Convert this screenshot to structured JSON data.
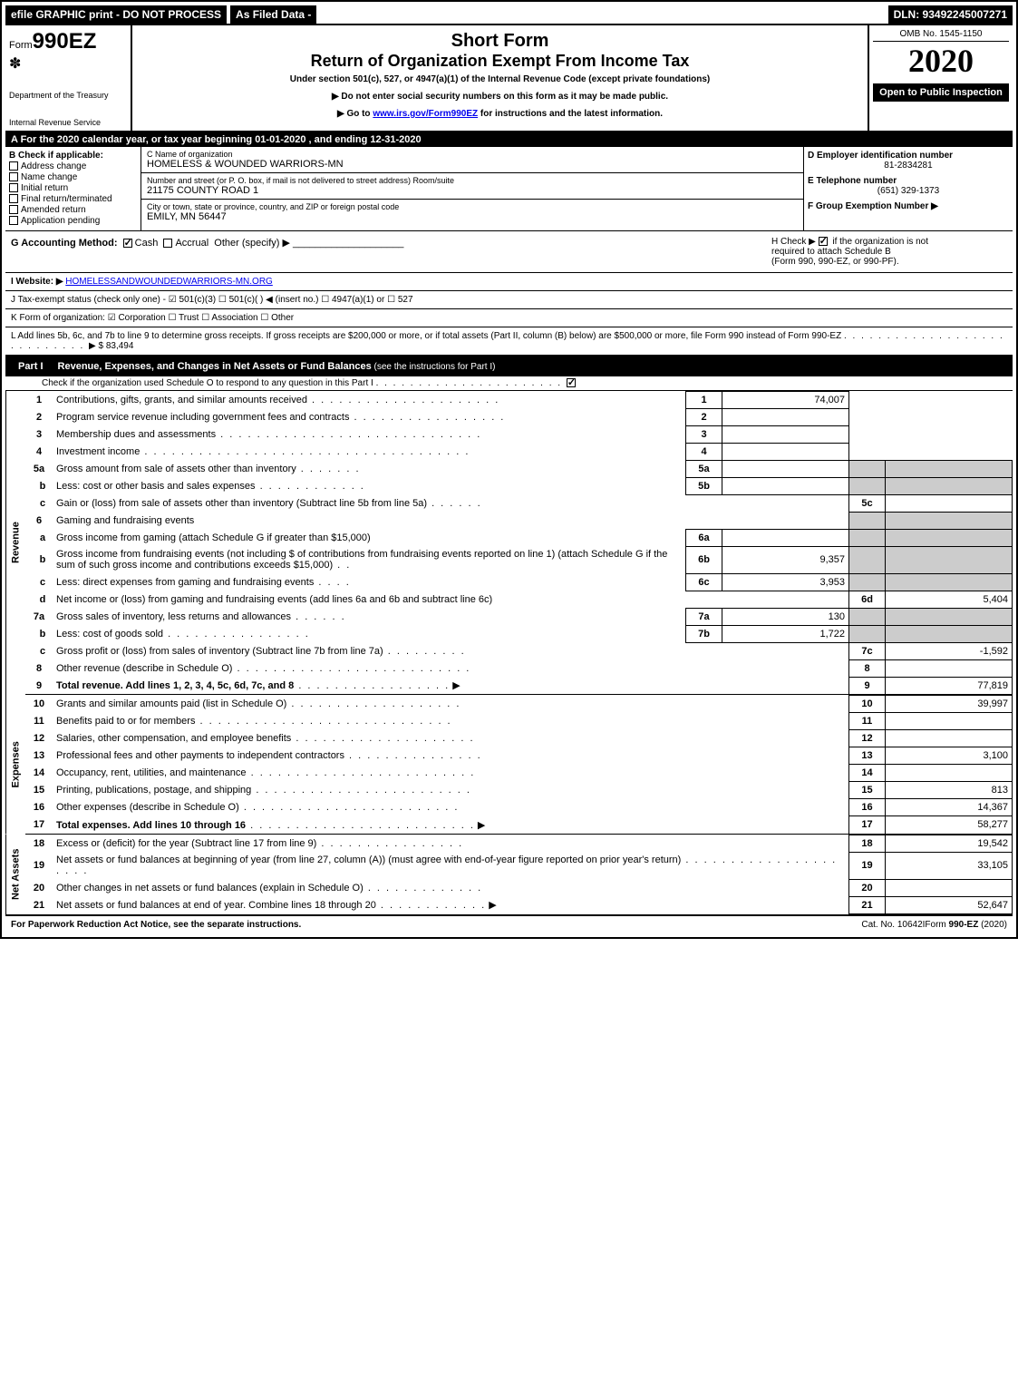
{
  "top": {
    "efile": "efile GRAPHIC print - DO NOT PROCESS",
    "filed": "As Filed Data -",
    "dln": "DLN: 93492245007271"
  },
  "header": {
    "form_prefix": "Form",
    "form_num": "990EZ",
    "dept1": "Department of the Treasury",
    "dept2": "Internal Revenue Service",
    "short": "Short Form",
    "return": "Return of Organization Exempt From Income Tax",
    "under": "Under section 501(c), 527, or 4947(a)(1) of the Internal Revenue Code (except private foundations)",
    "arrow1": "▶ Do not enter social security numbers on this form as it may be made public.",
    "arrow2_pre": "▶ Go to ",
    "arrow2_link": "www.irs.gov/Form990EZ",
    "arrow2_post": " for instructions and the latest information.",
    "omb": "OMB No. 1545-1150",
    "year": "2020",
    "open": "Open to Public Inspection"
  },
  "row_a": "A  For the 2020 calendar year, or tax year beginning 01-01-2020 , and ending 12-31-2020",
  "col_b": {
    "title": "B  Check if applicable:",
    "items": [
      "Address change",
      "Name change",
      "Initial return",
      "Final return/terminated",
      "Amended return",
      "Application pending"
    ]
  },
  "col_c": {
    "name_lbl": "C Name of organization",
    "name_val": "HOMELESS & WOUNDED WARRIORS-MN",
    "addr_lbl": "Number and street (or P. O. box, if mail is not delivered to street address)    Room/suite",
    "addr_val": "21175 COUNTY ROAD 1",
    "city_lbl": "City or town, state or province, country, and ZIP or foreign postal code",
    "city_val": "EMILY, MN  56447"
  },
  "col_d": {
    "lbl": "D Employer identification number",
    "val": "81-2834281"
  },
  "col_e": {
    "lbl": "E Telephone number",
    "val": "(651) 329-1373"
  },
  "col_f": {
    "lbl": "F Group Exemption Number  ▶"
  },
  "row_g": {
    "lbl": "G Accounting Method:",
    "cash": "Cash",
    "accrual": "Accrual",
    "other": "Other (specify) ▶"
  },
  "row_h": {
    "line1_pre": "H  Check ▶ ",
    "line1_post": " if the organization is not",
    "line2": "required to attach Schedule B",
    "line3": "(Form 990, 990-EZ, or 990-PF)."
  },
  "row_i": {
    "lbl": "I Website: ▶",
    "val": "HOMELESSANDWOUNDEDWARRIORS-MN.ORG"
  },
  "row_j": "J Tax-exempt status (check only one) - ☑ 501(c)(3)  ☐ 501(c)(  ) ◀ (insert no.) ☐ 4947(a)(1) or ☐ 527",
  "row_k": "K Form of organization:   ☑ Corporation  ☐ Trust  ☐ Association  ☐ Other",
  "row_l": {
    "text": "L Add lines 5b, 6c, and 7b to line 9 to determine gross receipts. If gross receipts are $200,000 or more, or if total assets (Part II, column (B) below) are $500,000 or more, file Form 990 instead of Form 990-EZ",
    "amount": "▶ $ 83,494"
  },
  "part1": {
    "num": "Part I",
    "title": "Revenue, Expenses, and Changes in Net Assets or Fund Balances",
    "title_paren": "(see the instructions for Part I)",
    "sub": "Check if the organization used Schedule O to respond to any question in this Part I"
  },
  "lines": {
    "l1": {
      "n": "1",
      "d": "Contributions, gifts, grants, and similar amounts received",
      "r": "1",
      "v": "74,007"
    },
    "l2": {
      "n": "2",
      "d": "Program service revenue including government fees and contracts",
      "r": "2",
      "v": ""
    },
    "l3": {
      "n": "3",
      "d": "Membership dues and assessments",
      "r": "3",
      "v": ""
    },
    "l4": {
      "n": "4",
      "d": "Investment income",
      "r": "4",
      "v": ""
    },
    "l5a": {
      "n": "5a",
      "d": "Gross amount from sale of assets other than inventory",
      "m": "5a",
      "mv": ""
    },
    "l5b": {
      "n": "b",
      "d": "Less: cost or other basis and sales expenses",
      "m": "5b",
      "mv": ""
    },
    "l5c": {
      "n": "c",
      "d": "Gain or (loss) from sale of assets other than inventory (Subtract line 5b from line 5a)",
      "r": "5c",
      "v": ""
    },
    "l6": {
      "n": "6",
      "d": "Gaming and fundraising events"
    },
    "l6a": {
      "n": "a",
      "d": "Gross income from gaming (attach Schedule G if greater than $15,000)",
      "m": "6a",
      "mv": ""
    },
    "l6b": {
      "n": "b",
      "d": "Gross income from fundraising events (not including $                                      of contributions from fundraising events reported on line 1) (attach Schedule G if the sum of such gross income and contributions exceeds $15,000)",
      "m": "6b",
      "mv": "9,357"
    },
    "l6c": {
      "n": "c",
      "d": "Less: direct expenses from gaming and fundraising events",
      "m": "6c",
      "mv": "3,953"
    },
    "l6d": {
      "n": "d",
      "d": "Net income or (loss) from gaming and fundraising events (add lines 6a and 6b and subtract line 6c)",
      "r": "6d",
      "v": "5,404"
    },
    "l7a": {
      "n": "7a",
      "d": "Gross sales of inventory, less returns and allowances",
      "m": "7a",
      "mv": "130"
    },
    "l7b": {
      "n": "b",
      "d": "Less: cost of goods sold",
      "m": "7b",
      "mv": "1,722"
    },
    "l7c": {
      "n": "c",
      "d": "Gross profit or (loss) from sales of inventory (Subtract line 7b from line 7a)",
      "r": "7c",
      "v": "-1,592"
    },
    "l8": {
      "n": "8",
      "d": "Other revenue (describe in Schedule O)",
      "r": "8",
      "v": ""
    },
    "l9": {
      "n": "9",
      "d": "Total revenue. Add lines 1, 2, 3, 4, 5c, 6d, 7c, and 8",
      "r": "9",
      "v": "77,819"
    },
    "l10": {
      "n": "10",
      "d": "Grants and similar amounts paid (list in Schedule O)",
      "r": "10",
      "v": "39,997"
    },
    "l11": {
      "n": "11",
      "d": "Benefits paid to or for members",
      "r": "11",
      "v": ""
    },
    "l12": {
      "n": "12",
      "d": "Salaries, other compensation, and employee benefits",
      "r": "12",
      "v": ""
    },
    "l13": {
      "n": "13",
      "d": "Professional fees and other payments to independent contractors",
      "r": "13",
      "v": "3,100"
    },
    "l14": {
      "n": "14",
      "d": "Occupancy, rent, utilities, and maintenance",
      "r": "14",
      "v": ""
    },
    "l15": {
      "n": "15",
      "d": "Printing, publications, postage, and shipping",
      "r": "15",
      "v": "813"
    },
    "l16": {
      "n": "16",
      "d": "Other expenses (describe in Schedule O)",
      "r": "16",
      "v": "14,367"
    },
    "l17": {
      "n": "17",
      "d": "Total expenses. Add lines 10 through 16",
      "r": "17",
      "v": "58,277"
    },
    "l18": {
      "n": "18",
      "d": "Excess or (deficit) for the year (Subtract line 17 from line 9)",
      "r": "18",
      "v": "19,542"
    },
    "l19": {
      "n": "19",
      "d": "Net assets or fund balances at beginning of year (from line 27, column (A)) (must agree with end-of-year figure reported on prior year's return)",
      "r": "19",
      "v": "33,105"
    },
    "l20": {
      "n": "20",
      "d": "Other changes in net assets or fund balances (explain in Schedule O)",
      "r": "20",
      "v": ""
    },
    "l21": {
      "n": "21",
      "d": "Net assets or fund balances at end of year. Combine lines 18 through 20",
      "r": "21",
      "v": "52,647"
    }
  },
  "side_labels": {
    "revenue": "Revenue",
    "expenses": "Expenses",
    "netassets": "Net Assets"
  },
  "footer": {
    "left": "For Paperwork Reduction Act Notice, see the separate instructions.",
    "mid": "Cat. No. 10642I",
    "right": "Form 990-EZ (2020)"
  }
}
